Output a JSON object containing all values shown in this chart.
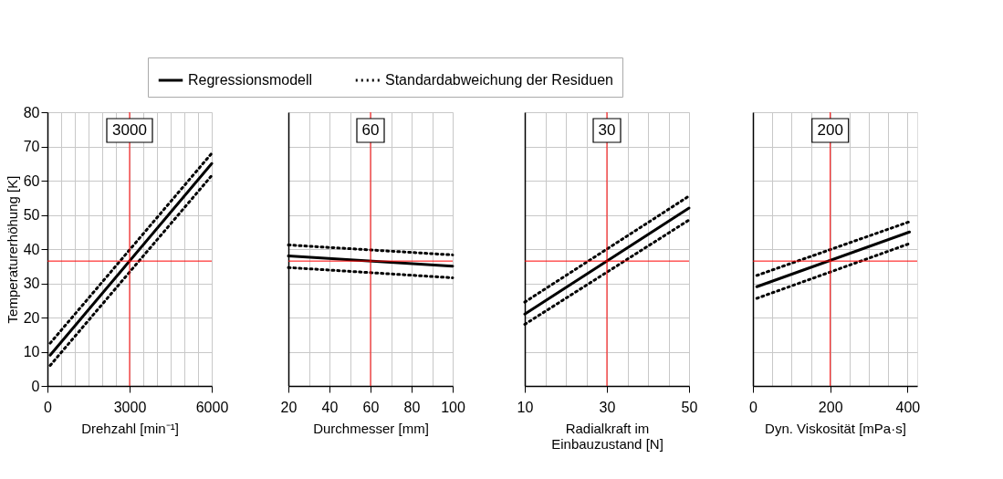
{
  "chart_data": [
    {
      "type": "line",
      "xlabel": "Drehzahl [min⁻¹]",
      "ylabel": "Temperaturerhöhung [K]",
      "x": [
        100,
        6000
      ],
      "xlim": [
        0,
        6000
      ],
      "xticks": [
        0,
        {
          "value": 500,
          "label": null
        },
        {
          "value": 1000,
          "label": null
        },
        {
          "value": 1500,
          "label": null
        },
        {
          "value": 2000,
          "label": null
        },
        {
          "value": 2500,
          "label": null
        },
        3000,
        {
          "value": 3500,
          "label": null
        },
        {
          "value": 4000,
          "label": null
        },
        {
          "value": 4500,
          "label": null
        },
        {
          "value": 5000,
          "label": null
        },
        {
          "value": 5500,
          "label": null
        },
        6000
      ],
      "ylim": [
        0,
        80
      ],
      "yticks": [
        0,
        10,
        20,
        30,
        40,
        50,
        60,
        70,
        80
      ],
      "grid": true,
      "legend": "top",
      "marker": "none",
      "series": [
        {
          "name": "Regressionsmodell",
          "color": "#000000",
          "line_style": "solid",
          "values": [
            9,
            65
          ]
        },
        {
          "name": "Standardabweichung der Residuen",
          "color": "#000000",
          "line_style": "dotted",
          "values": [
            12.5,
            68
          ]
        },
        {
          "color": "#000000",
          "line_style": "dotted",
          "values": [
            6,
            61.5
          ]
        }
      ],
      "ref_lines": [
        {
          "axis": "x",
          "value": 3000,
          "label": "3000",
          "color": "#ff0000"
        },
        {
          "axis": "y",
          "value": 36.5,
          "color": "#ff0000"
        }
      ]
    },
    {
      "type": "line",
      "xlabel": "Durchmesser [mm]",
      "x": [
        20,
        100
      ],
      "xlim": [
        20,
        100
      ],
      "xticks": [
        20,
        {
          "value": 30,
          "label": null
        },
        40,
        {
          "value": 50,
          "label": null
        },
        60,
        {
          "value": 70,
          "label": null
        },
        80,
        {
          "value": 90,
          "label": null
        },
        100
      ],
      "ylim": [
        0,
        80
      ],
      "yticks": [
        0,
        10,
        20,
        30,
        40,
        50,
        60,
        70,
        80
      ],
      "grid": true,
      "tick_labels": "x",
      "marker": "none",
      "series": [
        {
          "name": "Regressionsmodell",
          "color": "#000000",
          "line_style": "solid",
          "values": [
            38,
            35
          ]
        },
        {
          "name": "Standardabweichung der Residuen",
          "color": "#000000",
          "line_style": "dotted",
          "values": [
            41.2,
            38.3
          ]
        },
        {
          "color": "#000000",
          "line_style": "dotted",
          "values": [
            34.6,
            31.6
          ]
        }
      ],
      "ref_lines": [
        {
          "axis": "x",
          "value": 60,
          "label": "60",
          "color": "#ff0000"
        },
        {
          "axis": "y",
          "value": 36.5,
          "color": "#ff0000"
        }
      ]
    },
    {
      "type": "line",
      "xlabel": "Radialkraft im Einbauzustand [N]",
      "x": [
        10,
        50
      ],
      "xlim": [
        10,
        50
      ],
      "xticks": [
        10,
        {
          "value": 15,
          "label": null
        },
        {
          "value": 20,
          "label": null
        },
        {
          "value": 25,
          "label": null
        },
        30,
        {
          "value": 35,
          "label": null
        },
        {
          "value": 40,
          "label": null
        },
        {
          "value": 45,
          "label": null
        },
        50
      ],
      "ylim": [
        0,
        80
      ],
      "yticks": [
        0,
        10,
        20,
        30,
        40,
        50,
        60,
        70,
        80
      ],
      "grid": true,
      "tick_labels": "x",
      "marker": "none",
      "series": [
        {
          "name": "Regressionsmodell",
          "color": "#000000",
          "line_style": "solid",
          "values": [
            21,
            52
          ]
        },
        {
          "name": "Standardabweichung der Residuen",
          "color": "#000000",
          "line_style": "dotted",
          "values": [
            24.5,
            55.5
          ]
        },
        {
          "color": "#000000",
          "line_style": "dotted",
          "values": [
            18,
            48.5
          ]
        }
      ],
      "ref_lines": [
        {
          "axis": "x",
          "value": 30,
          "label": "30",
          "color": "#ff0000"
        },
        {
          "axis": "y",
          "value": 36.5,
          "color": "#ff0000"
        }
      ]
    },
    {
      "type": "line",
      "xlabel": "Dyn. Viskosität [mPa·s]",
      "x": [
        10,
        405
      ],
      "xlim": [
        0,
        425
      ],
      "xticks": [
        0,
        {
          "value": 50,
          "label": null
        },
        {
          "value": 100,
          "label": null
        },
        {
          "value": 150,
          "label": null
        },
        200,
        {
          "value": 250,
          "label": null
        },
        {
          "value": 300,
          "label": null
        },
        {
          "value": 350,
          "label": null
        },
        400
      ],
      "ylim": [
        0,
        80
      ],
      "yticks": [
        0,
        10,
        20,
        30,
        40,
        50,
        60,
        70,
        80
      ],
      "grid": true,
      "tick_labels": "x",
      "marker": "none",
      "series": [
        {
          "name": "Regressionsmodell",
          "color": "#000000",
          "line_style": "solid",
          "values": [
            29,
            45
          ]
        },
        {
          "name": "Standardabweichung der Residuen",
          "color": "#000000",
          "line_style": "dotted",
          "values": [
            32.3,
            48
          ]
        },
        {
          "color": "#000000",
          "line_style": "dotted",
          "values": [
            25.6,
            41.6
          ]
        }
      ],
      "ref_lines": [
        {
          "axis": "x",
          "value": 200,
          "label": "200",
          "color": "#ff0000"
        },
        {
          "axis": "y",
          "value": 36.5,
          "color": "#ff0000"
        }
      ]
    }
  ]
}
